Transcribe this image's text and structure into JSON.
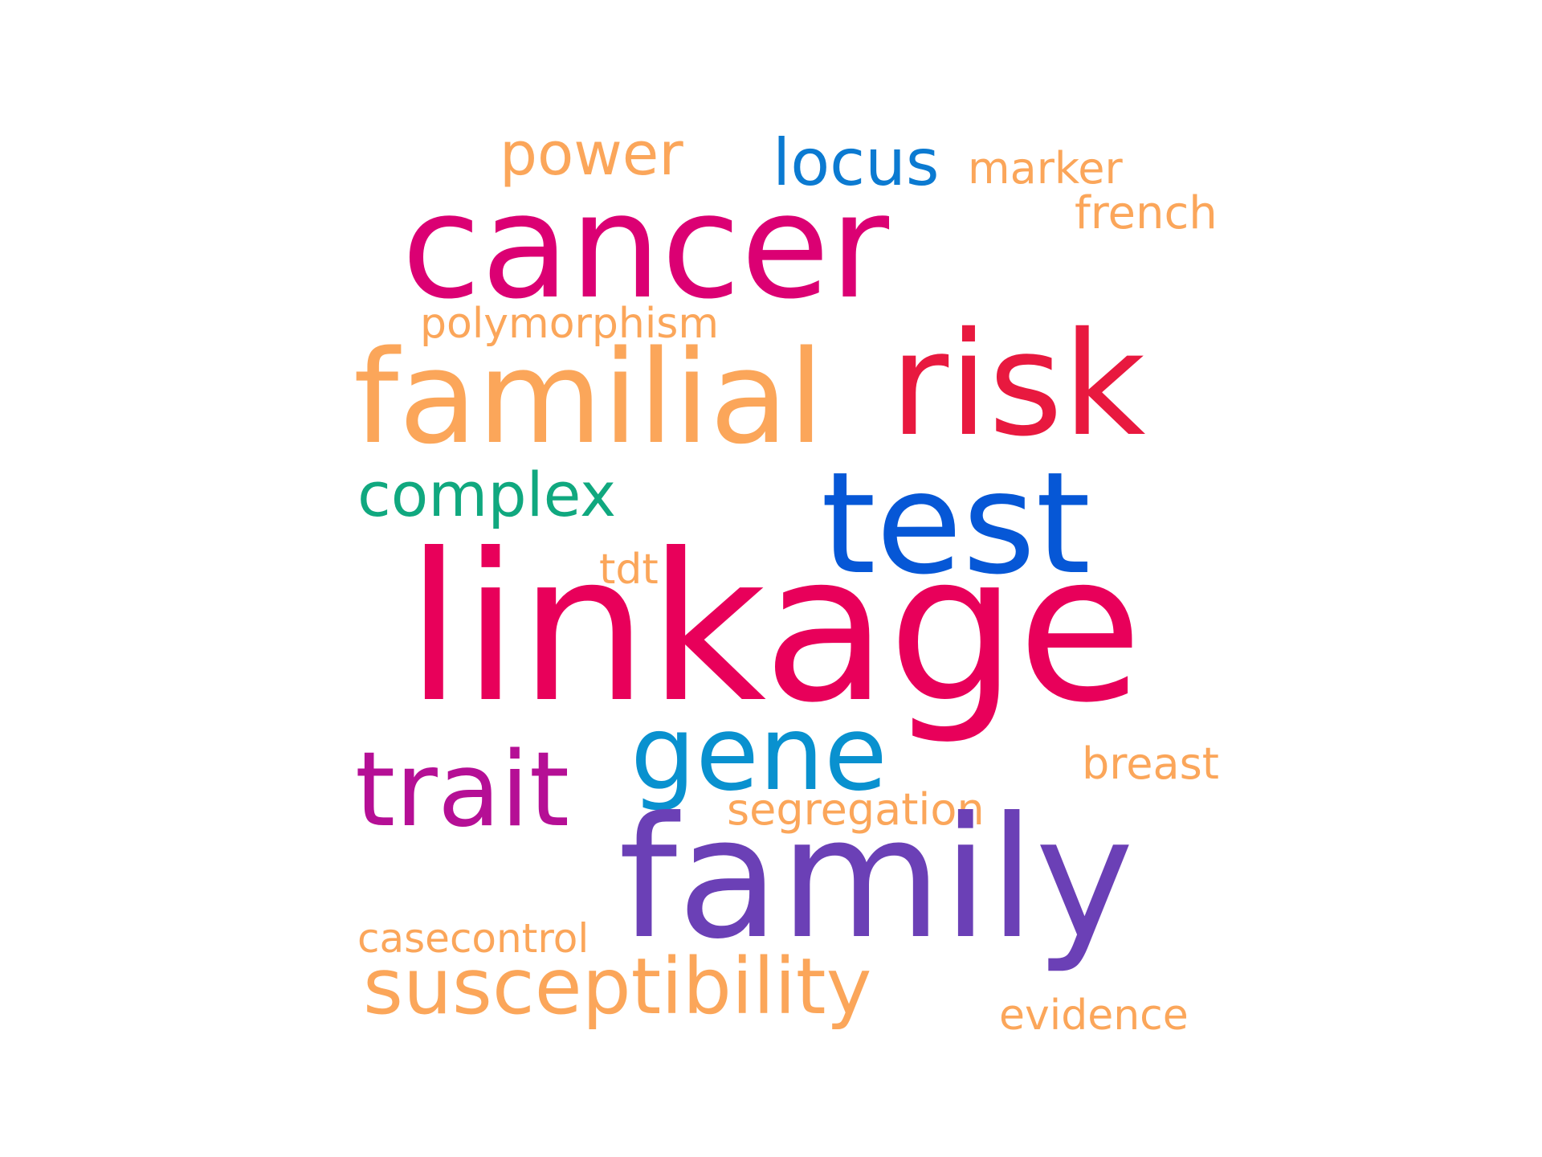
{
  "words": {
    "linkage": {
      "text": "linkage",
      "color": "#e8005a"
    },
    "family": {
      "text": "family",
      "color": "#6b40b6"
    },
    "cancer": {
      "text": "cancer",
      "color": "#db0073"
    },
    "risk": {
      "text": "risk",
      "color": "#e8193f"
    },
    "familial": {
      "text": "familial",
      "color": "#fba65a"
    },
    "test": {
      "text": "test",
      "color": "#0657d6"
    },
    "gene": {
      "text": "gene",
      "color": "#0991cf"
    },
    "trait": {
      "text": "trait",
      "color": "#b50f95"
    },
    "susceptibility": {
      "text": "susceptibility",
      "color": "#fba65a"
    },
    "locus": {
      "text": "locus",
      "color": "#0b7ad1"
    },
    "power": {
      "text": "power",
      "color": "#fba65a"
    },
    "complex": {
      "text": "complex",
      "color": "#10a87f"
    },
    "marker": {
      "text": "marker",
      "color": "#fba65a"
    },
    "french": {
      "text": "french",
      "color": "#fba65a"
    },
    "polymorphism": {
      "text": "polymorphism",
      "color": "#fba65a"
    },
    "tdt": {
      "text": "tdt",
      "color": "#fba65a"
    },
    "breast": {
      "text": "breast",
      "color": "#fba65a"
    },
    "segregation": {
      "text": "segregation",
      "color": "#fba65a"
    },
    "casecontrol": {
      "text": "casecontrol",
      "color": "#fba65a"
    },
    "evidence": {
      "text": "evidence",
      "color": "#fba65a"
    }
  }
}
